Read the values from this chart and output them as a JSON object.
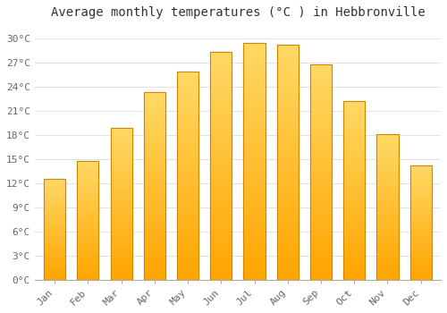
{
  "months": [
    "Jan",
    "Feb",
    "Mar",
    "Apr",
    "May",
    "Jun",
    "Jul",
    "Aug",
    "Sep",
    "Oct",
    "Nov",
    "Dec"
  ],
  "values": [
    12.5,
    14.7,
    18.8,
    23.3,
    25.8,
    28.3,
    29.4,
    29.2,
    26.7,
    22.2,
    18.1,
    14.2
  ],
  "bar_color_top": "#FFD966",
  "bar_color_bottom": "#FFA500",
  "bar_edge_color": "#CC8800",
  "title": "Average monthly temperatures (°C ) in Hebbronville",
  "ytick_values": [
    0,
    3,
    6,
    9,
    12,
    15,
    18,
    21,
    24,
    27,
    30
  ],
  "ytick_labels": [
    "0°C",
    "3°C",
    "6°C",
    "9°C",
    "12°C",
    "15°C",
    "18°C",
    "21°C",
    "24°C",
    "27°C",
    "30°C"
  ],
  "ylim": [
    0,
    31.5
  ],
  "background_color": "#ffffff",
  "plot_bg_color": "#ffffff",
  "grid_color": "#dddddd",
  "title_fontsize": 10,
  "tick_fontsize": 8,
  "bar_width": 0.65
}
